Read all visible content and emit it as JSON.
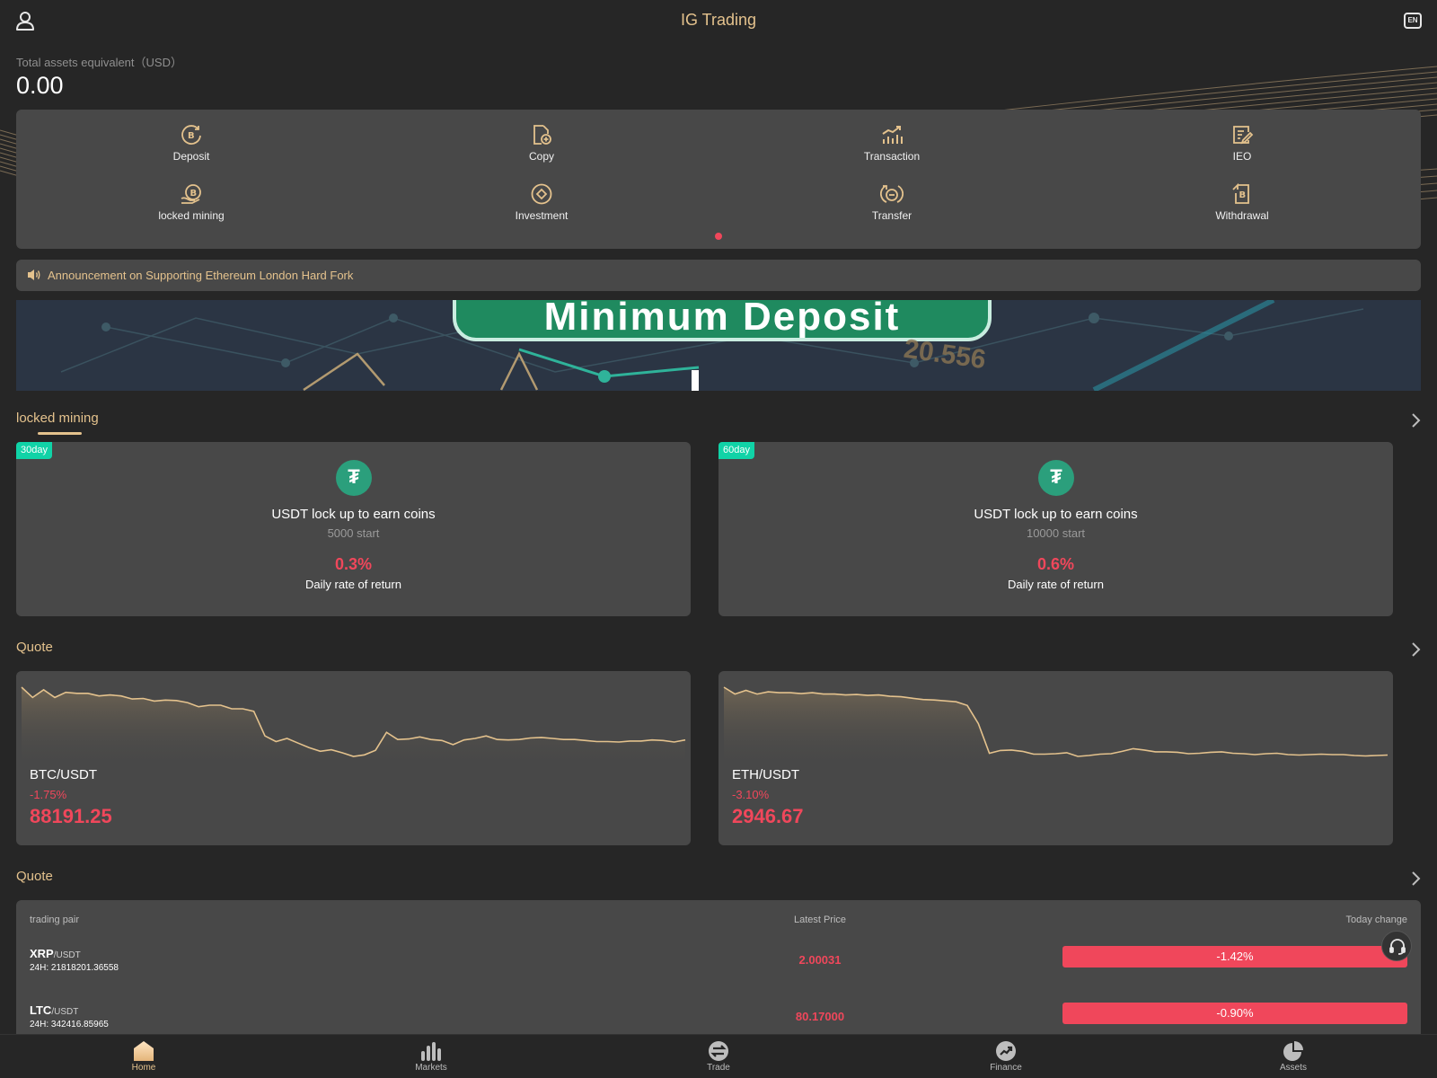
{
  "header": {
    "title": "IG Trading",
    "lang": "EN"
  },
  "assets": {
    "label": "Total assets equivalent（USD）",
    "amount": "0.00"
  },
  "quick_menu": {
    "row1": [
      {
        "label": "Deposit",
        "icon": "deposit-icon"
      },
      {
        "label": "Copy",
        "icon": "copy-icon"
      },
      {
        "label": "Transaction",
        "icon": "transaction-icon"
      },
      {
        "label": "IEO",
        "icon": "ieo-icon"
      }
    ],
    "row2": [
      {
        "label": "locked mining",
        "icon": "locked-mining-icon"
      },
      {
        "label": "Investment",
        "icon": "investment-icon"
      },
      {
        "label": "Transfer",
        "icon": "transfer-icon"
      },
      {
        "label": "Withdrawal",
        "icon": "withdrawal-icon"
      }
    ]
  },
  "announcement": {
    "text": "Announcement on Supporting Ethereum London Hard Fork"
  },
  "banner": {
    "text": "Minimum Deposit",
    "number": "20.556"
  },
  "mining": {
    "title": "locked mining",
    "cards": [
      {
        "badge": "30day",
        "title": "USDT lock up to earn coins",
        "start": "5000 start",
        "rate": "0.3%",
        "rate_label": "Daily rate of return"
      },
      {
        "badge": "60day",
        "title": "USDT lock up to earn coins",
        "start": "10000 start",
        "rate": "0.6%",
        "rate_label": "Daily rate of return"
      }
    ]
  },
  "quote_cards": {
    "title": "Quote",
    "cards": [
      {
        "pair": "BTC/USDT",
        "change": "-1.75%",
        "price": "88191.25",
        "sparkline": [
          88,
          86,
          87.5,
          86,
          87,
          86.8,
          86.8,
          86.3,
          86.5,
          86.3,
          85.7,
          85.8,
          85.3,
          85.5,
          85.4,
          85,
          84.2,
          84.5,
          84.5,
          83.8,
          83.8,
          83.3,
          78.5,
          77.4,
          78,
          77.1,
          76.2,
          75.5,
          75.8,
          75.2,
          74.5,
          74.8,
          75.7,
          79.2,
          77.8,
          77.9,
          78.3,
          77.8,
          77.6,
          76.8,
          77.7,
          78,
          78.5,
          77.8,
          77.7,
          77.8,
          78.1,
          78.2,
          78,
          77.8,
          77.8,
          77.6,
          77.4,
          77.4,
          77.3,
          77.5,
          77.5,
          77.7,
          77.6,
          77.3,
          77.7
        ]
      },
      {
        "pair": "ETH/USDT",
        "change": "-3.10%",
        "price": "2946.67",
        "sparkline": [
          88,
          86.5,
          87.3,
          86.5,
          87,
          86.8,
          86.8,
          86.6,
          86.8,
          86.5,
          86.5,
          86.3,
          86.4,
          86.2,
          86.3,
          86,
          85.9,
          85.6,
          85.3,
          85.2,
          85,
          84.8,
          84,
          80,
          73.5,
          74.1,
          74.2,
          73.9,
          73.3,
          73.3,
          73.4,
          73.6,
          72.8,
          73,
          73.3,
          73.4,
          73.9,
          74.5,
          74.2,
          73.8,
          73.8,
          73.7,
          73.4,
          73.5,
          73.7,
          73.8,
          73.5,
          73.4,
          73.2,
          73.4,
          73.5,
          73.2,
          73.1,
          73.2,
          73.3,
          73.2,
          73.2,
          73,
          72.9,
          73,
          73.1
        ]
      }
    ]
  },
  "quote_table": {
    "title": "Quote",
    "columns": [
      "trading pair",
      "Latest Price",
      "Today change"
    ],
    "rows": [
      {
        "base": "XRP",
        "quote": "/USDT",
        "vol": "24H: 21818201.36558",
        "price": "2.00031",
        "change": "-1.42%"
      },
      {
        "base": "LTC",
        "quote": "/USDT",
        "vol": "24H: 342416.85965",
        "price": "80.17000",
        "change": "-0.90%"
      }
    ]
  },
  "bottom_nav": [
    {
      "label": "Home",
      "icon": "home-icon",
      "active": true
    },
    {
      "label": "Markets",
      "icon": "markets-icon"
    },
    {
      "label": "Trade",
      "icon": "trade-icon"
    },
    {
      "label": "Finance",
      "icon": "finance-icon"
    },
    {
      "label": "Assets",
      "icon": "assets-icon"
    }
  ],
  "colors": {
    "accent": "#e4c28d",
    "negative": "#f0475b",
    "badge": "#10d3a7",
    "card": "#484848",
    "background": "#262626"
  }
}
